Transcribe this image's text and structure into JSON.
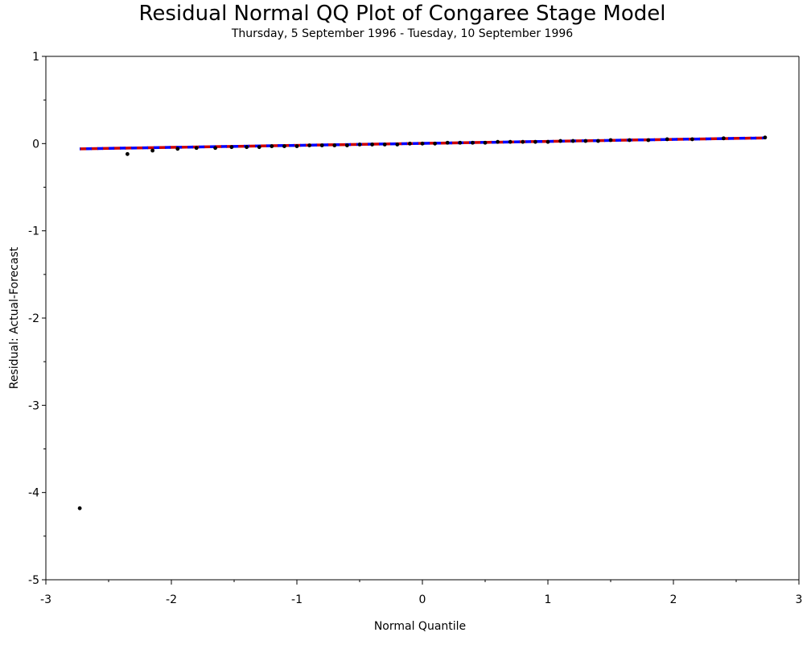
{
  "chart_data": {
    "type": "scatter",
    "title": "Residual Normal QQ Plot of Congaree Stage Model",
    "subtitle": "Thursday, 5 September 1996 - Tuesday, 10 September 1996",
    "xlabel": "Normal Quantile",
    "ylabel": "Residual: Actual-Forecast",
    "xlim": [
      -3,
      3
    ],
    "ylim": [
      -5,
      1
    ],
    "x_ticks": [
      "-3",
      "-2",
      "-1",
      "0",
      "1",
      "2",
      "3"
    ],
    "y_ticks": [
      "-5",
      "-4",
      "-3",
      "-2",
      "-1",
      "0",
      "1"
    ],
    "grid": false,
    "series": [
      {
        "color": "#000000",
        "kind": "points",
        "points": [
          [
            -2.73,
            -4.18
          ],
          [
            -2.35,
            -0.12
          ],
          [
            -2.15,
            -0.08
          ],
          [
            -1.95,
            -0.06
          ],
          [
            -1.8,
            -0.05
          ],
          [
            -1.65,
            -0.05
          ],
          [
            -1.52,
            -0.04
          ],
          [
            -1.4,
            -0.04
          ],
          [
            -1.3,
            -0.04
          ],
          [
            -1.2,
            -0.03
          ],
          [
            -1.1,
            -0.03
          ],
          [
            -1.0,
            -0.03
          ],
          [
            -0.9,
            -0.02
          ],
          [
            -0.8,
            -0.02
          ],
          [
            -0.7,
            -0.02
          ],
          [
            -0.6,
            -0.02
          ],
          [
            -0.5,
            -0.01
          ],
          [
            -0.4,
            -0.01
          ],
          [
            -0.3,
            -0.01
          ],
          [
            -0.2,
            -0.01
          ],
          [
            -0.1,
            0.0
          ],
          [
            0.0,
            0.0
          ],
          [
            0.1,
            0.0
          ],
          [
            0.2,
            0.01
          ],
          [
            0.3,
            0.01
          ],
          [
            0.4,
            0.01
          ],
          [
            0.5,
            0.01
          ],
          [
            0.6,
            0.02
          ],
          [
            0.7,
            0.02
          ],
          [
            0.8,
            0.02
          ],
          [
            0.9,
            0.02
          ],
          [
            1.0,
            0.02
          ],
          [
            1.1,
            0.03
          ],
          [
            1.2,
            0.03
          ],
          [
            1.3,
            0.03
          ],
          [
            1.4,
            0.03
          ],
          [
            1.5,
            0.04
          ],
          [
            1.65,
            0.04
          ],
          [
            1.8,
            0.04
          ],
          [
            1.95,
            0.05
          ],
          [
            2.15,
            0.05
          ],
          [
            2.4,
            0.06
          ],
          [
            2.73,
            0.07
          ]
        ]
      },
      {
        "color": "#cc0000",
        "kind": "dashed-line",
        "points": [
          [
            -2.73,
            -0.06
          ],
          [
            2.73,
            0.065
          ]
        ]
      },
      {
        "color": "#0000ff",
        "kind": "dashed-line",
        "points": [
          [
            -2.73,
            -0.06
          ],
          [
            2.73,
            0.065
          ]
        ]
      }
    ]
  }
}
